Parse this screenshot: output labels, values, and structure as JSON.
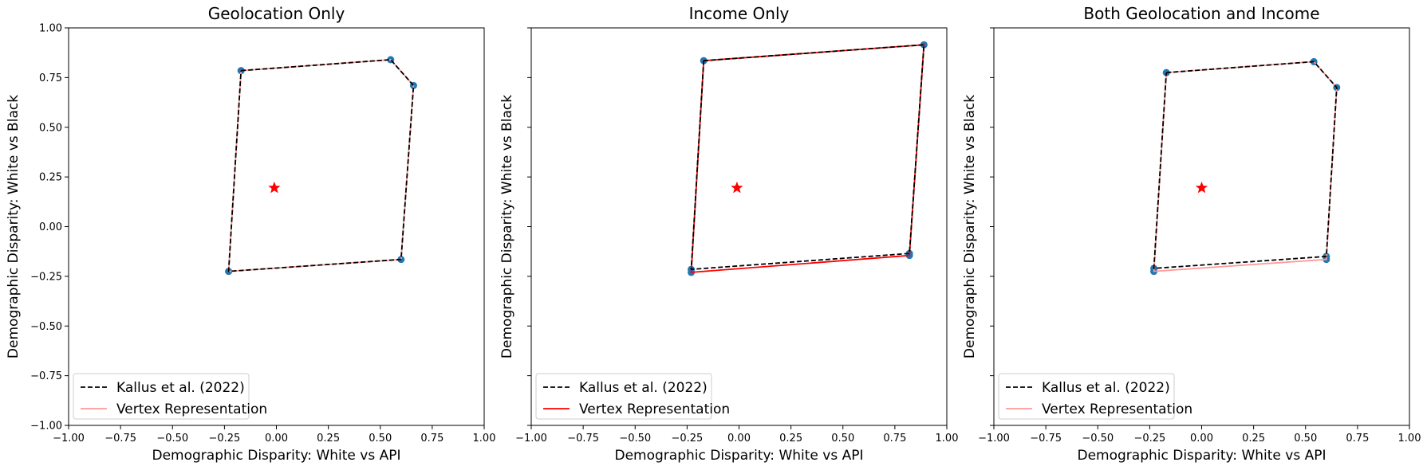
{
  "chart_data": [
    {
      "type": "line",
      "title": "Geolocation Only",
      "xlabel": "Demographic Disparity: White vs API",
      "ylabel": "Demographic Disparity: White vs Black",
      "xlim": [
        -1.0,
        1.0
      ],
      "ylim": [
        -1.0,
        1.0
      ],
      "xticks": [
        "−1.00",
        "−0.75",
        "−0.50",
        "−0.25",
        "0.00",
        "0.25",
        "0.50",
        "0.75",
        "1.00"
      ],
      "yticks": [
        "−1.00",
        "−0.75",
        "−0.50",
        "−0.25",
        "0.00",
        "0.25",
        "0.50",
        "0.75",
        "1.00"
      ],
      "show_yticklabels": true,
      "grid": false,
      "legend_position": "lower-left",
      "center_star": {
        "x": -0.01,
        "y": 0.195,
        "color": "#ff0000"
      },
      "series": [
        {
          "name": "Kallus et al. (2022)",
          "style": "dashed",
          "color": "#000000",
          "x": [
            -0.17,
            0.55,
            0.66,
            0.6,
            -0.23,
            -0.17
          ],
          "y": [
            0.785,
            0.84,
            0.71,
            -0.165,
            -0.225,
            0.785
          ]
        },
        {
          "name": "Vertex Representation",
          "style": "solid",
          "color": "#ff9999",
          "x": [
            -0.17,
            0.55,
            0.66,
            0.6,
            -0.23,
            -0.17
          ],
          "y": [
            0.785,
            0.84,
            0.71,
            -0.165,
            -0.225,
            0.785
          ]
        }
      ],
      "vertices": {
        "x": [
          -0.17,
          0.55,
          0.66,
          0.6,
          -0.23
        ],
        "y": [
          0.785,
          0.84,
          0.71,
          -0.165,
          -0.225
        ]
      }
    },
    {
      "type": "line",
      "title": "Income Only",
      "xlabel": "Demographic Disparity: White vs API",
      "ylabel": "Demographic Disparity: White vs Black",
      "xlim": [
        -1.0,
        1.0
      ],
      "ylim": [
        -1.0,
        1.0
      ],
      "xticks": [
        "−1.00",
        "−0.75",
        "−0.50",
        "−0.25",
        "0.00",
        "0.25",
        "0.50",
        "0.75",
        "1.00"
      ],
      "yticks": [],
      "show_yticklabels": false,
      "grid": false,
      "legend_position": "lower-left",
      "center_star": {
        "x": -0.01,
        "y": 0.195,
        "color": "#ff0000"
      },
      "series": [
        {
          "name": "Kallus et al. (2022)",
          "style": "dashed",
          "color": "#000000",
          "x": [
            -0.17,
            0.89,
            0.82,
            -0.23,
            -0.17
          ],
          "y": [
            0.835,
            0.915,
            -0.135,
            -0.215,
            0.835
          ]
        },
        {
          "name": "Vertex Representation",
          "style": "solid",
          "color": "#ff0000",
          "x": [
            -0.17,
            0.89,
            0.82,
            -0.23,
            -0.17
          ],
          "y": [
            0.835,
            0.915,
            -0.145,
            -0.23,
            0.835
          ]
        }
      ],
      "vertices": {
        "x": [
          -0.17,
          0.89,
          0.82,
          0.82,
          -0.23,
          -0.23
        ],
        "y": [
          0.835,
          0.915,
          -0.135,
          -0.145,
          -0.215,
          -0.23
        ]
      }
    },
    {
      "type": "line",
      "title": "Both Geolocation and Income",
      "xlabel": "Demographic Disparity: White vs API",
      "ylabel": "Demographic Disparity: White vs Black",
      "xlim": [
        -1.0,
        1.0
      ],
      "ylim": [
        -1.0,
        1.0
      ],
      "xticks": [
        "−1.00",
        "−0.75",
        "−0.50",
        "−0.25",
        "0.00",
        "0.25",
        "0.50",
        "0.75",
        "1.00"
      ],
      "yticks": [],
      "show_yticklabels": false,
      "grid": false,
      "legend_position": "lower-left",
      "center_star": {
        "x": 0.0,
        "y": 0.195,
        "color": "#ff0000"
      },
      "series": [
        {
          "name": "Kallus et al. (2022)",
          "style": "dashed",
          "color": "#000000",
          "x": [
            -0.17,
            0.54,
            0.65,
            0.6,
            -0.23,
            -0.17
          ],
          "y": [
            0.775,
            0.83,
            0.7,
            -0.15,
            -0.21,
            0.775
          ]
        },
        {
          "name": "Vertex Representation",
          "style": "solid",
          "color": "#ff9999",
          "x": [
            -0.17,
            0.54,
            0.65,
            0.6,
            -0.23,
            -0.17
          ],
          "y": [
            0.775,
            0.83,
            0.7,
            -0.165,
            -0.225,
            0.775
          ]
        }
      ],
      "vertices": {
        "x": [
          -0.17,
          0.54,
          0.65,
          0.6,
          0.6,
          -0.23,
          -0.23
        ],
        "y": [
          0.775,
          0.83,
          0.7,
          -0.15,
          -0.165,
          -0.21,
          -0.225
        ]
      }
    }
  ]
}
